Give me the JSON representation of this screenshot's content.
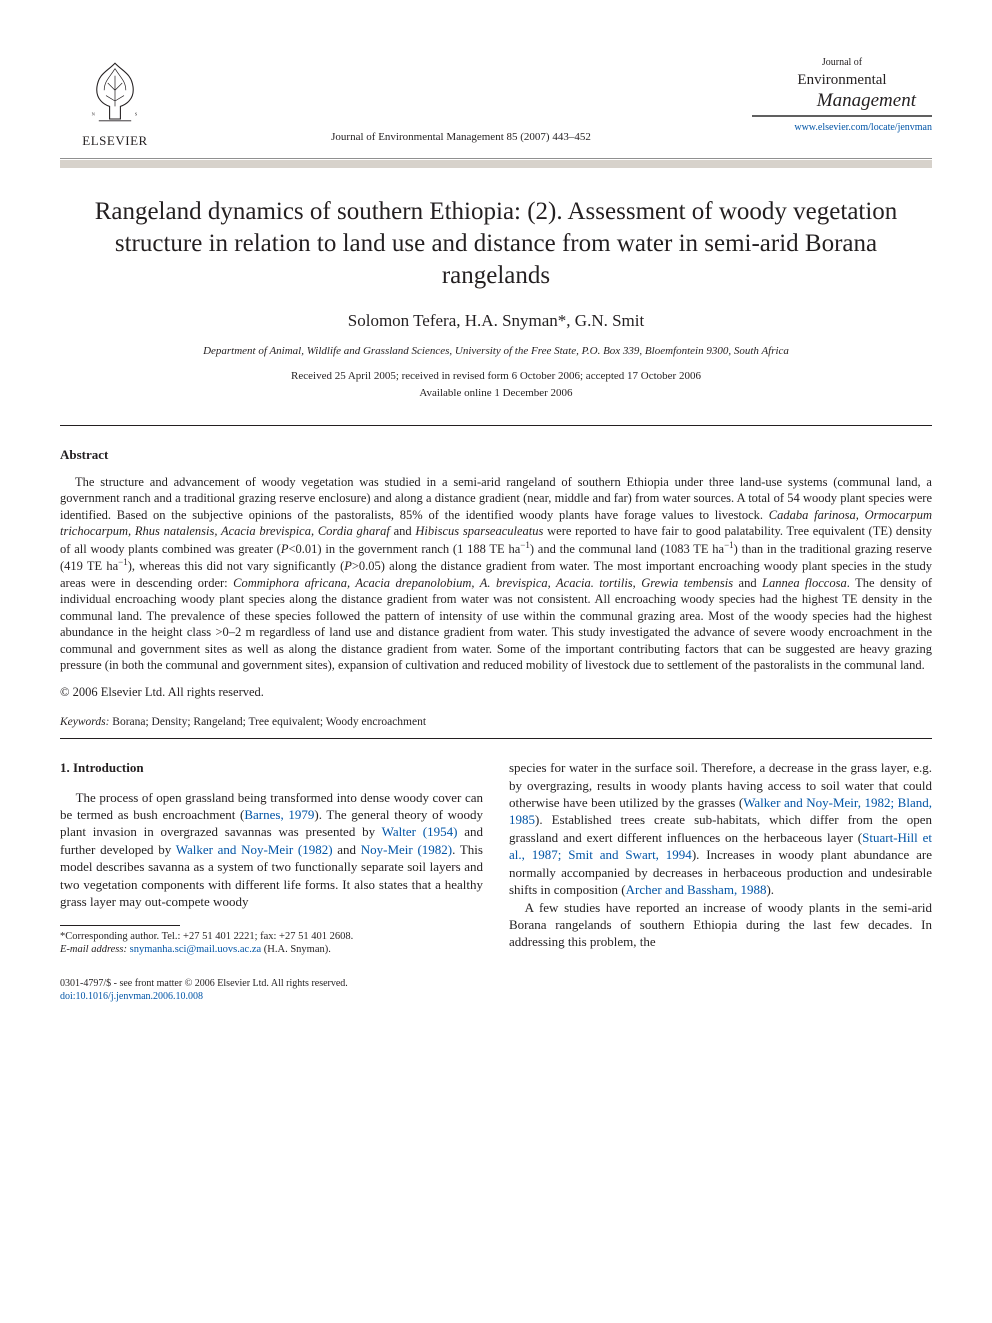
{
  "publisher": {
    "name": "ELSEVIER"
  },
  "citation": "Journal of Environmental Management 85 (2007) 443–452",
  "journal_brand": {
    "top": "Journal of",
    "main": "Environmental",
    "sub": "Management",
    "url": "www.elsevier.com/locate/jenvman"
  },
  "title": "Rangeland dynamics of southern Ethiopia: (2). Assessment of woody vegetation structure in relation to land use and distance from water in semi-arid Borana rangelands",
  "authors": "Solomon Tefera, H.A. Snyman*, G.N. Smit",
  "affiliation": "Department of Animal, Wildlife and Grassland Sciences, University of the Free State, P.O. Box 339, Bloemfontein 9300, South Africa",
  "dates": "Received 25 April 2005; received in revised form 6 October 2006; accepted 17 October 2006",
  "online_date": "Available online 1 December 2006",
  "abstract_heading": "Abstract",
  "abstract_html": "The structure and advancement of woody vegetation was studied in a semi-arid rangeland of southern Ethiopia under three land-use systems (communal land, a government ranch and a traditional grazing reserve enclosure) and along a distance gradient (near, middle and far) from water sources. A total of 54 woody plant species were identified. Based on the subjective opinions of the pastoralists, 85% of the identified woody plants have forage values to livestock. <em>Cadaba farinosa, Ormocarpum trichocarpum, Rhus natalensis, Acacia brevispica, Cordia gharaf</em> and <em>Hibiscus sparseaculeatus</em> were reported to have fair to good palatability. Tree equivalent (TE) density of all woody plants combined was greater (<em>P</em>&lt;0.01) in the government ranch (1 188 TE ha<sup>−1</sup>) and the communal land (1083 TE ha<sup>−1</sup>) than in the traditional grazing reserve (419 TE ha<sup>−1</sup>), whereas this did not vary significantly (<em>P</em>&gt;0.05) along the distance gradient from water. The most important encroaching woody plant species in the study areas were in descending order: <em>Commiphora africana, Acacia drepanolobium, A. brevispica, Acacia. tortilis, Grewia tembensis</em> and <em>Lannea floccosa</em>. The density of individual encroaching woody plant species along the distance gradient from water was not consistent. All encroaching woody species had the highest TE density in the communal land. The prevalence of these species followed the pattern of intensity of use within the communal grazing area. Most of the woody species had the highest abundance in the height class &gt;0–2 m regardless of land use and distance gradient from water. This study investigated the advance of severe woody encroachment in the communal and government sites as well as along the distance gradient from water. Some of the important contributing factors that can be suggested are heavy grazing pressure (in both the communal and government sites), expansion of cultivation and reduced mobility of livestock due to settlement of the pastoralists in the communal land.",
  "copyright": "© 2006 Elsevier Ltd. All rights reserved.",
  "keywords_label": "Keywords:",
  "keywords": "Borana; Density; Rangeland; Tree equivalent; Woody encroachment",
  "section1_heading": "1. Introduction",
  "col_left_html": "The process of open grassland being transformed into dense woody cover can be termed as bush encroachment (<span class=\"cite\">Barnes, 1979</span>). The general theory of woody plant invasion in overgrazed savannas was presented by <span class=\"cite\">Walter (1954)</span> and further developed by <span class=\"cite\">Walker and Noy-Meir (1982)</span> and <span class=\"cite\">Noy-Meir (1982)</span>. This model describes savanna as a system of two functionally separate soil layers and two vegetation components with different life forms. It also states that a healthy grass layer may out-compete woody",
  "col_right_p1_html": "species for water in the surface soil. Therefore, a decrease in the grass layer, e.g. by overgrazing, results in woody plants having access to soil water that could otherwise have been utilized by the grasses (<span class=\"cite\">Walker and Noy-Meir, 1982; Bland, 1985</span>). Established trees create sub-habitats, which differ from the open grassland and exert different influences on the herbaceous layer (<span class=\"cite\">Stuart-Hill et al., 1987; Smit and Swart, 1994</span>). Increases in woody plant abundance are normally accompanied by decreases in herbaceous production and undesirable shifts in composition (<span class=\"cite\">Archer and Bassham, 1988</span>).",
  "col_right_p2_html": "A few studies have reported an increase of woody plants in the semi-arid Borana rangelands of southern Ethiopia during the last few decades. In addressing this problem, the",
  "footnote": {
    "line1": "*Corresponding author. Tel.: +27 51 401 2221; fax: +27 51 401 2608.",
    "line2_label": "E-mail address:",
    "line2_email": "snymanha.sci@mail.uovs.ac.za",
    "line2_tail": "(H.A. Snyman)."
  },
  "footer": {
    "line1": "0301-4797/$ - see front matter © 2006 Elsevier Ltd. All rights reserved.",
    "doi": "doi:10.1016/j.jenvman.2006.10.008"
  }
}
